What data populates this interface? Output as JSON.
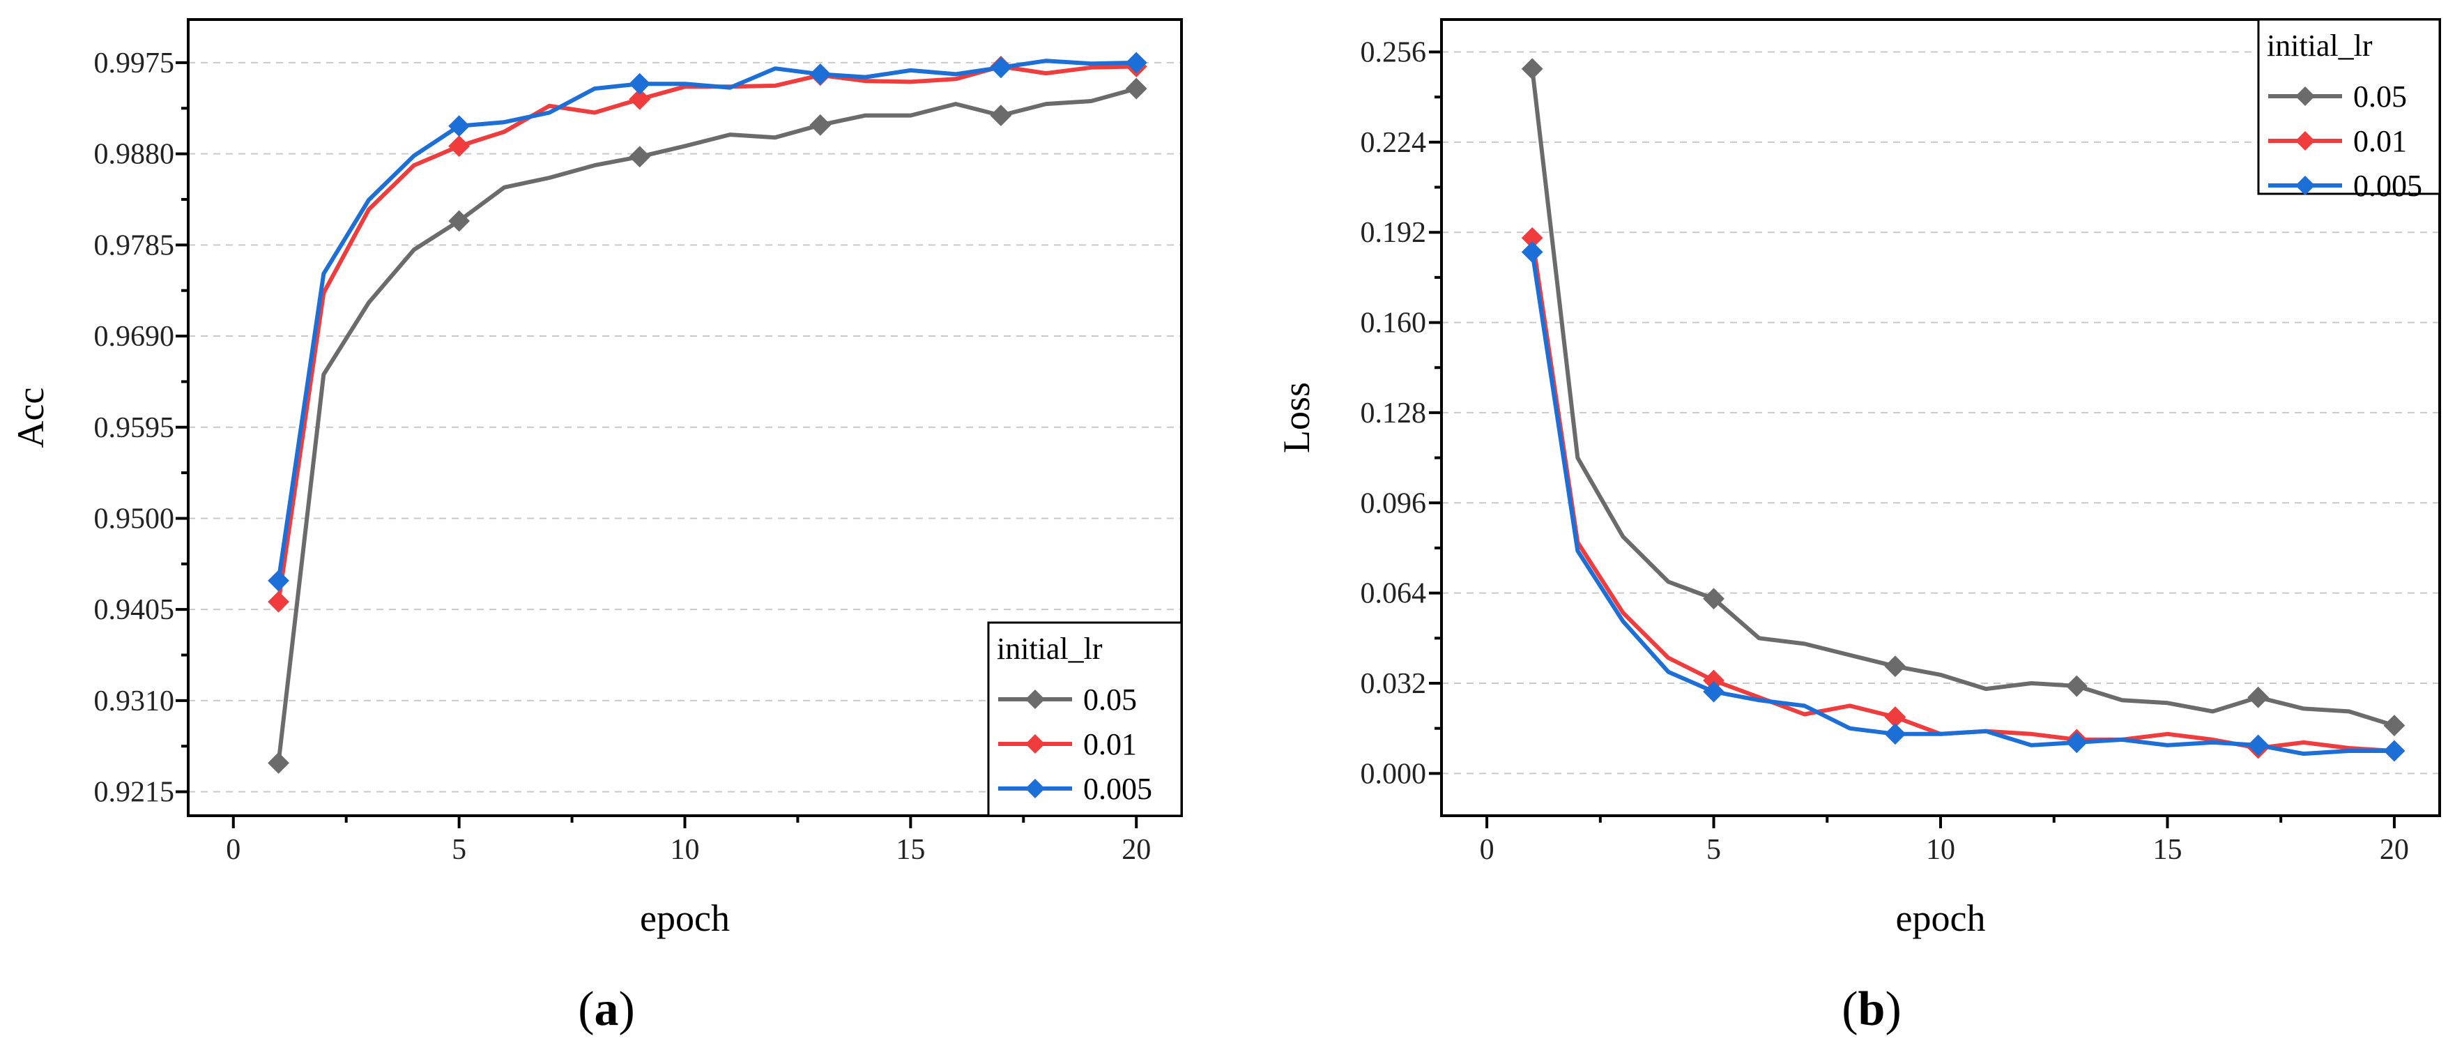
{
  "chart_data": [
    {
      "type": "line",
      "panel_label": "(a)",
      "xlabel": "epoch",
      "ylabel": "Acc",
      "xlim": [
        -1,
        21
      ],
      "ylim": [
        0.919,
        1.002
      ],
      "x_ticks": [
        0,
        5,
        10,
        15,
        20
      ],
      "x_tick_labels": [
        "0",
        "5",
        "10",
        "15",
        "20"
      ],
      "y_ticks": [
        0.9215,
        0.931,
        0.9405,
        0.95,
        0.9595,
        0.969,
        0.9785,
        0.988,
        0.9975
      ],
      "y_tick_labels": [
        "0.9215",
        "0.9310",
        "0.9405",
        "0.9500",
        "0.9595",
        "0.9690",
        "0.9785",
        "0.9880",
        "0.9975"
      ],
      "grid": true,
      "legend_title": "initial_lr",
      "legend_position": "bottom-right",
      "x": [
        1,
        2,
        3,
        4,
        5,
        6,
        7,
        8,
        9,
        10,
        11,
        12,
        13,
        14,
        15,
        16,
        17,
        18,
        19,
        20
      ],
      "marker_x": [
        1,
        5,
        9,
        13,
        17,
        20
      ],
      "series": [
        {
          "name": "0.05",
          "color": "#6b6b6b",
          "values": [
            0.9245,
            0.965,
            0.9725,
            0.978,
            0.981,
            0.9845,
            0.9855,
            0.9868,
            0.9877,
            0.9888,
            0.99,
            0.9897,
            0.991,
            0.992,
            0.992,
            0.9932,
            0.992,
            0.9932,
            0.9935,
            0.9948
          ]
        },
        {
          "name": "0.01",
          "color": "#f03c3c",
          "values": [
            0.9413,
            0.9735,
            0.9822,
            0.9868,
            0.9888,
            0.9903,
            0.993,
            0.9923,
            0.9937,
            0.995,
            0.995,
            0.9951,
            0.9962,
            0.9956,
            0.9955,
            0.9958,
            0.9971,
            0.9964,
            0.997,
            0.9971
          ]
        },
        {
          "name": "0.005",
          "color": "#1d6fd8",
          "values": [
            0.9435,
            0.9755,
            0.9832,
            0.9878,
            0.9909,
            0.9913,
            0.9923,
            0.9948,
            0.9953,
            0.9953,
            0.9949,
            0.9969,
            0.9963,
            0.996,
            0.9967,
            0.9963,
            0.997,
            0.9977,
            0.9974,
            0.9975
          ]
        }
      ]
    },
    {
      "type": "line",
      "panel_label": "(b)",
      "xlabel": "epoch",
      "ylabel": "Loss",
      "xlim": [
        -1,
        21
      ],
      "ylim": [
        -0.015,
        0.2675
      ],
      "x_ticks": [
        0,
        5,
        10,
        15,
        20
      ],
      "x_tick_labels": [
        "0",
        "5",
        "10",
        "15",
        "20"
      ],
      "y_ticks": [
        0,
        0.032,
        0.064,
        0.096,
        0.128,
        0.16,
        0.192,
        0.224,
        0.256
      ],
      "y_tick_labels": [
        "0.000",
        "0.032",
        "0.064",
        "0.096",
        "0.128",
        "0.160",
        "0.192",
        "0.224",
        "0.256"
      ],
      "grid": true,
      "legend_title": "initial_lr",
      "legend_position": "top-right",
      "x": [
        1,
        2,
        3,
        4,
        5,
        6,
        7,
        8,
        9,
        10,
        11,
        12,
        13,
        14,
        15,
        16,
        17,
        18,
        19,
        20
      ],
      "marker_x": [
        1,
        5,
        9,
        13,
        17,
        20
      ],
      "series": [
        {
          "name": "0.05",
          "color": "#6b6b6b",
          "values": [
            0.25,
            0.112,
            0.084,
            0.068,
            0.062,
            0.048,
            0.046,
            0.042,
            0.038,
            0.035,
            0.03,
            0.032,
            0.031,
            0.026,
            0.025,
            0.022,
            0.027,
            0.023,
            0.022,
            0.017
          ]
        },
        {
          "name": "0.01",
          "color": "#f03c3c",
          "values": [
            0.19,
            0.082,
            0.057,
            0.041,
            0.033,
            0.027,
            0.021,
            0.024,
            0.02,
            0.014,
            0.015,
            0.014,
            0.012,
            0.012,
            0.014,
            0.012,
            0.009,
            0.011,
            0.009,
            0.008
          ]
        },
        {
          "name": "0.005",
          "color": "#1d6fd8",
          "values": [
            0.185,
            0.079,
            0.054,
            0.036,
            0.029,
            0.026,
            0.024,
            0.016,
            0.014,
            0.014,
            0.015,
            0.01,
            0.011,
            0.012,
            0.01,
            0.011,
            0.01,
            0.007,
            0.008,
            0.008
          ]
        }
      ]
    }
  ]
}
